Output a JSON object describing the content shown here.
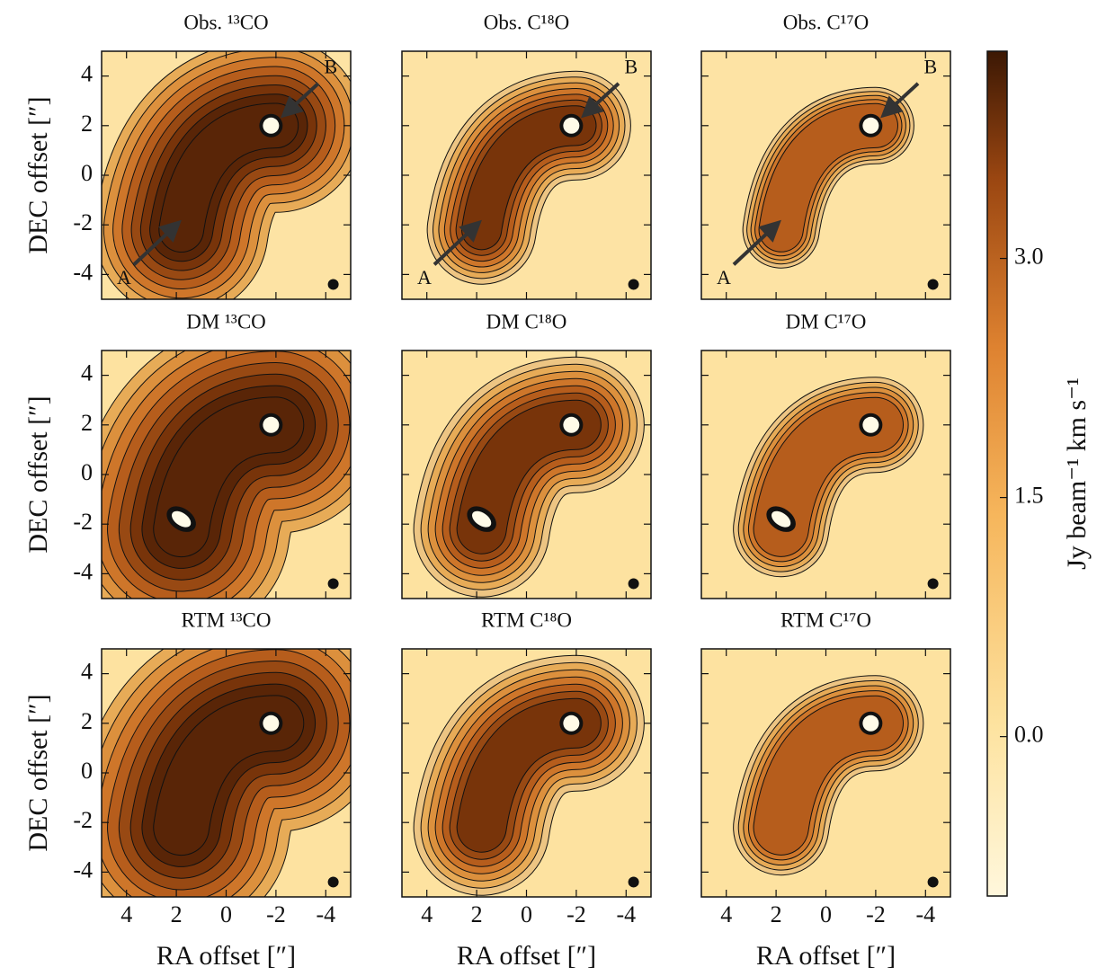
{
  "chart_data": {
    "type": "map_grid",
    "axes": {
      "xlabel": "RA offset [″]",
      "ylabel": "DEC offset [″]",
      "xlim": [
        5,
        -5
      ],
      "ylim": [
        -5,
        5
      ],
      "xticks": [
        4,
        2,
        0,
        -2,
        -4
      ],
      "yticks": [
        4,
        2,
        0,
        -2,
        -4
      ]
    },
    "panels": [
      {
        "title": "Obs. ¹³CO",
        "annotations": [
          "A",
          "B"
        ]
      },
      {
        "title": "Obs. C¹⁸O",
        "annotations": [
          "A",
          "B"
        ]
      },
      {
        "title": "Obs. C¹⁷O",
        "annotations": [
          "A",
          "B"
        ]
      },
      {
        "title": "DM ¹³CO"
      },
      {
        "title": "DM C¹⁸O"
      },
      {
        "title": "DM C¹⁷O"
      },
      {
        "title": "RTM ¹³CO"
      },
      {
        "title": "RTM C¹⁸O"
      },
      {
        "title": "RTM C¹⁷O"
      }
    ],
    "colorbar": {
      "label": "Jy beam⁻¹ km s⁻¹",
      "lim": [
        -1.0,
        4.3
      ],
      "ticks": [
        {
          "value": 0.0,
          "label": "0.0"
        },
        {
          "value": 1.5,
          "label": "1.5"
        },
        {
          "value": 3.0,
          "label": "3.0"
        }
      ]
    }
  }
}
